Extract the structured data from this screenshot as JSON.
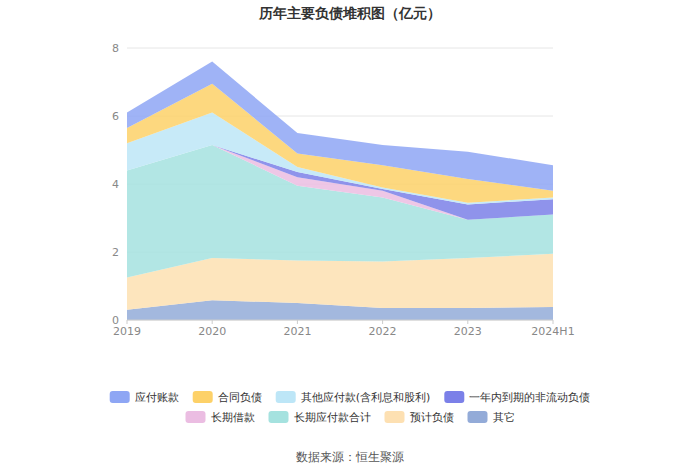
{
  "chart_data": {
    "type": "area",
    "title": "历年主要负债堆积图（亿元）",
    "annotations": [
      "数据来源：恒生聚源"
    ],
    "categories": [
      "2019",
      "2020",
      "2021",
      "2022",
      "2023",
      "2024H1"
    ],
    "stacked": true,
    "grid": true,
    "legend": "bottom",
    "ylim": [
      0,
      8
    ],
    "yticks": [
      0,
      2,
      4,
      6,
      8
    ],
    "series": [
      {
        "name": "应付账款",
        "color": "#8ea6f4",
        "values": [
          0.45,
          0.65,
          0.6,
          0.6,
          0.8,
          0.75
        ]
      },
      {
        "name": "合同负债",
        "color": "#fdd168",
        "values": [
          0.45,
          0.85,
          0.4,
          0.65,
          0.7,
          0.2
        ]
      },
      {
        "name": "其他应付款(含利息和股利)",
        "color": "#bde6f7",
        "values": [
          0.8,
          0.95,
          0.15,
          0.05,
          0.05,
          0.05
        ]
      },
      {
        "name": "一年内到期的非流动负债",
        "color": "#7b80e8",
        "values": [
          0,
          0,
          0.15,
          0.05,
          0.45,
          0.45
        ]
      },
      {
        "name": "长期借款",
        "color": "#ebbde2",
        "values": [
          0,
          0,
          0.25,
          0.2,
          0,
          0
        ]
      },
      {
        "name": "长期应付款合计",
        "color": "#a5e2df",
        "values": [
          3.15,
          3.33,
          2.2,
          1.88,
          1.13,
          1.15
        ]
      },
      {
        "name": "预计负债",
        "color": "#fde0b2",
        "values": [
          0.95,
          1.24,
          1.25,
          1.37,
          1.47,
          1.57
        ]
      },
      {
        "name": "其它",
        "color": "#93abd8",
        "values": [
          0.3,
          0.58,
          0.5,
          0.35,
          0.35,
          0.38
        ]
      }
    ]
  }
}
